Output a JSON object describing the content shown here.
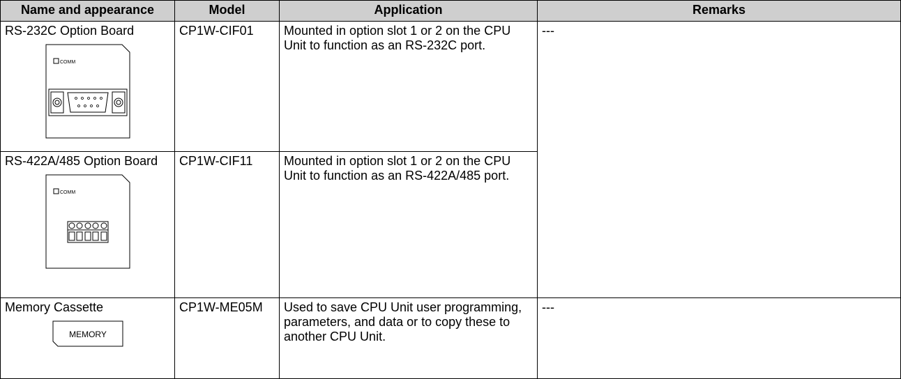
{
  "table": {
    "headers": [
      "Name and appearance",
      "Model",
      "Application",
      "Remarks"
    ],
    "rows": [
      {
        "name": "RS-232C Option Board",
        "label": "COMM",
        "model": "CP1W-CIF01",
        "application": "Mounted in option slot 1 or 2 on the CPU Unit to function as an RS-232C port.",
        "remarks": "---"
      },
      {
        "name": "RS-422A/485 Option Board",
        "label": "COMM",
        "model": "CP1W-CIF11",
        "application": "Mounted in option slot 1 or 2 on the CPU Unit to function as an RS-422A/485 port."
      },
      {
        "name": "Memory Cassette",
        "label": "MEMORY",
        "model": "CP1W-ME05M",
        "application": "Used to save CPU Unit user programming, parameters, and data or to copy these to another CPU Unit.",
        "remarks": "---"
      }
    ]
  }
}
